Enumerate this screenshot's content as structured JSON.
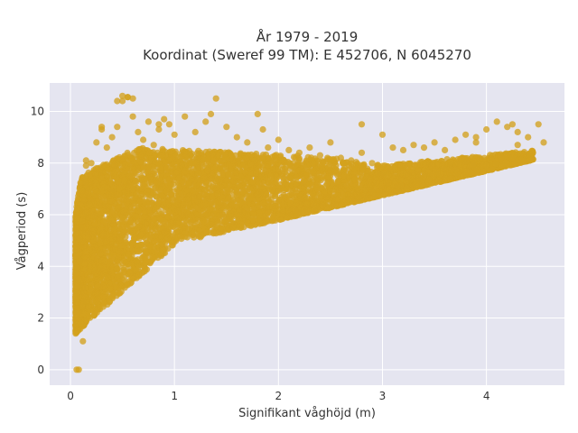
{
  "chart_data": {
    "type": "scatter",
    "title_line1": "År 1979 - 2019",
    "title_line2": "Koordinat (Sweref 99 TM): E 452706, N 6045270",
    "xlabel": "Signifikant våghöjd (m)",
    "ylabel": "Vågperiod (s)",
    "xlim": [
      -0.2,
      4.75
    ],
    "ylim": [
      -0.6,
      11.1
    ],
    "xticks": [
      0,
      1,
      2,
      3,
      4
    ],
    "yticks": [
      0,
      2,
      4,
      6,
      8,
      10
    ],
    "grid": true,
    "legend": "none",
    "marker_color": "#d4a11e",
    "plot_background": "#e5e5f0",
    "series": [
      {
        "x": [
          0.06,
          0.08,
          0.05,
          0.1,
          0.12,
          0.08,
          0.15,
          0.2,
          0.25,
          0.3,
          0.12,
          0.18,
          0.07,
          0.09,
          0.11,
          0.14,
          0.35,
          0.4,
          0.45,
          0.5,
          0.55,
          0.6,
          0.65,
          0.7,
          0.75,
          0.8,
          0.85,
          0.9,
          0.95,
          1.0,
          1.1,
          1.2,
          1.3,
          1.4,
          1.5,
          1.6,
          1.7,
          1.8,
          1.9,
          2.0,
          2.1,
          2.2,
          2.3,
          2.4,
          2.5,
          2.6,
          2.7,
          2.8,
          2.9,
          3.0,
          3.1,
          3.2,
          3.3,
          3.4,
          3.5,
          3.6,
          3.7,
          3.8,
          3.9,
          4.0,
          4.1,
          4.2,
          4.3,
          4.4,
          4.5,
          4.55,
          0.12,
          0.55,
          0.6,
          0.85,
          1.35,
          1.85,
          2.8,
          0.5,
          4.3,
          4.25,
          3.9,
          0.15,
          0.3,
          0.45
        ],
        "y": [
          0.0,
          0.0,
          1.4,
          1.8,
          2.2,
          3.5,
          7.9,
          8.0,
          8.8,
          9.3,
          5.5,
          6.4,
          2.6,
          4.2,
          6.9,
          7.4,
          8.6,
          9.0,
          9.4,
          10.4,
          10.55,
          9.8,
          9.2,
          8.9,
          9.6,
          8.7,
          9.3,
          9.7,
          9.5,
          9.1,
          9.8,
          9.2,
          9.6,
          10.5,
          9.4,
          9.0,
          8.8,
          9.9,
          8.6,
          8.9,
          8.5,
          8.4,
          8.6,
          8.3,
          8.8,
          8.2,
          8.1,
          8.4,
          8.0,
          9.1,
          8.6,
          8.5,
          8.7,
          8.6,
          8.8,
          8.5,
          8.9,
          9.1,
          8.8,
          9.3,
          9.6,
          9.4,
          9.2,
          9.0,
          9.5,
          8.8,
          1.1,
          10.55,
          10.5,
          9.5,
          9.9,
          9.3,
          9.5,
          10.6,
          8.7,
          9.5,
          9.0,
          8.1,
          9.4,
          10.4
        ]
      }
    ],
    "generated_cloud_note": ""
  }
}
